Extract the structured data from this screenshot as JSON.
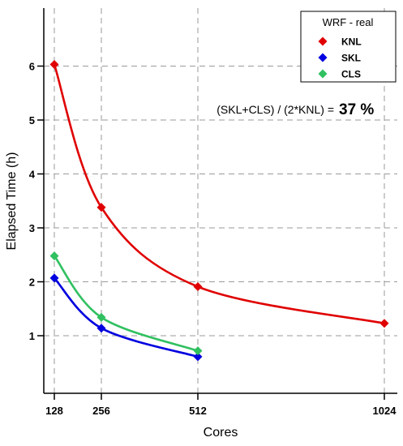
{
  "chart_data": {
    "type": "line",
    "xlabel": "Cores",
    "ylabel": "Elapsed Time (h)",
    "x": [
      128,
      256,
      512,
      1024
    ],
    "x_tick_labels": [
      "128",
      "256",
      "512",
      "1024"
    ],
    "y_ticks": [
      1,
      2,
      3,
      4,
      5,
      6
    ],
    "grid": true,
    "legend": {
      "title": "WRF - real",
      "position": "top-right"
    },
    "series": [
      {
        "name": "KNL",
        "color": "#e00000",
        "marker": "diamond",
        "x": [
          128,
          256,
          512,
          1024
        ],
        "values": [
          6.03,
          3.38,
          1.91,
          1.23
        ]
      },
      {
        "name": "SKL",
        "color": "#0000e0",
        "marker": "diamond",
        "x": [
          128,
          256,
          512
        ],
        "values": [
          2.07,
          1.14,
          0.61
        ]
      },
      {
        "name": "CLS",
        "color": "#30c060",
        "marker": "diamond",
        "x": [
          128,
          256,
          512
        ],
        "values": [
          2.48,
          1.34,
          0.72
        ]
      }
    ],
    "annotation": {
      "text": "(SKL+CLS) / (2*KNL) =",
      "value": "37 %"
    }
  }
}
